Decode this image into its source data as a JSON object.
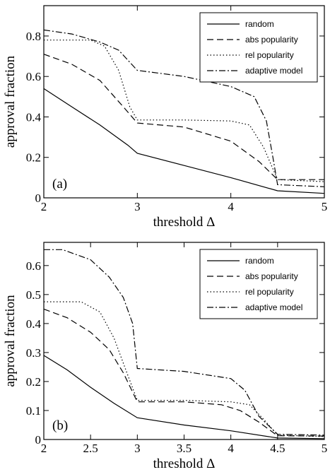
{
  "chart_data": [
    {
      "type": "line",
      "panel_label": "(a)",
      "xlabel": "threshold Δ",
      "ylabel": "approval fraction",
      "xlim": [
        2,
        5
      ],
      "ylim": [
        0,
        0.95
      ],
      "xticks": [
        2,
        3,
        4,
        5
      ],
      "xtick_labels": [
        "2",
        "3",
        "4",
        "5"
      ],
      "yticks": [
        0,
        0.2,
        0.4,
        0.6,
        0.8
      ],
      "ytick_labels": [
        "0",
        "0.2",
        "0.4",
        "0.6",
        "0.8"
      ],
      "legend": "top-right",
      "grid": false,
      "series": [
        {
          "name": "random",
          "style": "solid",
          "x": [
            2,
            2.3,
            2.6,
            2.9,
            3.0,
            3.5,
            4.0,
            4.5,
            5.0
          ],
          "y": [
            0.54,
            0.45,
            0.36,
            0.26,
            0.22,
            0.16,
            0.1,
            0.035,
            0.022
          ]
        },
        {
          "name": "abs popularity",
          "style": "dashed",
          "x": [
            2,
            2.3,
            2.6,
            2.85,
            3.0,
            3.5,
            4.0,
            4.3,
            4.5,
            5.0
          ],
          "y": [
            0.71,
            0.66,
            0.58,
            0.45,
            0.37,
            0.35,
            0.28,
            0.18,
            0.09,
            0.09
          ]
        },
        {
          "name": "rel popularity",
          "style": "dotted",
          "x": [
            2,
            2.5,
            2.65,
            2.8,
            2.92,
            3.0,
            3.5,
            4.0,
            4.2,
            4.35,
            4.5,
            5.0
          ],
          "y": [
            0.78,
            0.78,
            0.75,
            0.63,
            0.45,
            0.385,
            0.385,
            0.38,
            0.36,
            0.25,
            0.09,
            0.08
          ]
        },
        {
          "name": "adaptive model",
          "style": "dashdot",
          "x": [
            2,
            2.3,
            2.6,
            2.8,
            3.0,
            3.5,
            4.0,
            4.25,
            4.38,
            4.45,
            4.5,
            5.0
          ],
          "y": [
            0.83,
            0.81,
            0.77,
            0.73,
            0.63,
            0.6,
            0.55,
            0.5,
            0.38,
            0.2,
            0.065,
            0.055
          ]
        }
      ]
    },
    {
      "type": "line",
      "panel_label": "(b)",
      "xlabel": "threshold Δ",
      "ylabel": "approval fraction",
      "xlim": [
        2,
        5
      ],
      "ylim": [
        0,
        0.68
      ],
      "xticks": [
        2,
        2.5,
        3,
        3.5,
        4,
        4.5,
        5
      ],
      "xtick_labels": [
        "2",
        "2.5",
        "3",
        "3.5",
        "4",
        "4.5",
        "5"
      ],
      "yticks": [
        0,
        0.1,
        0.2,
        0.3,
        0.4,
        0.5,
        0.6
      ],
      "ytick_labels": [
        "0",
        "0.1",
        "0.2",
        "0.3",
        "0.4",
        "0.5",
        "0.6"
      ],
      "legend": "top-right",
      "grid": false,
      "series": [
        {
          "name": "random",
          "style": "solid",
          "x": [
            2,
            2.25,
            2.5,
            2.75,
            3.0,
            3.5,
            4.0,
            4.5,
            5.0
          ],
          "y": [
            0.29,
            0.24,
            0.18,
            0.125,
            0.075,
            0.05,
            0.03,
            0.005,
            0.003
          ]
        },
        {
          "name": "abs popularity",
          "style": "dashed",
          "x": [
            2,
            2.25,
            2.5,
            2.7,
            2.85,
            3.0,
            3.5,
            3.9,
            4.1,
            4.3,
            4.5,
            5.0
          ],
          "y": [
            0.45,
            0.42,
            0.37,
            0.31,
            0.23,
            0.13,
            0.13,
            0.12,
            0.1,
            0.06,
            0.013,
            0.012
          ]
        },
        {
          "name": "rel popularity",
          "style": "dotted",
          "x": [
            2,
            2.4,
            2.6,
            2.75,
            2.9,
            3.0,
            3.5,
            4.0,
            4.2,
            4.35,
            4.5,
            5.0
          ],
          "y": [
            0.475,
            0.475,
            0.44,
            0.35,
            0.22,
            0.135,
            0.135,
            0.13,
            0.12,
            0.07,
            0.015,
            0.01
          ]
        },
        {
          "name": "adaptive model",
          "style": "dashdot",
          "x": [
            2,
            2.2,
            2.5,
            2.7,
            2.85,
            2.95,
            3.0,
            3.5,
            4.0,
            4.15,
            4.3,
            4.5,
            5.0
          ],
          "y": [
            0.655,
            0.655,
            0.62,
            0.56,
            0.49,
            0.4,
            0.245,
            0.235,
            0.21,
            0.17,
            0.08,
            0.018,
            0.015
          ]
        }
      ]
    }
  ]
}
